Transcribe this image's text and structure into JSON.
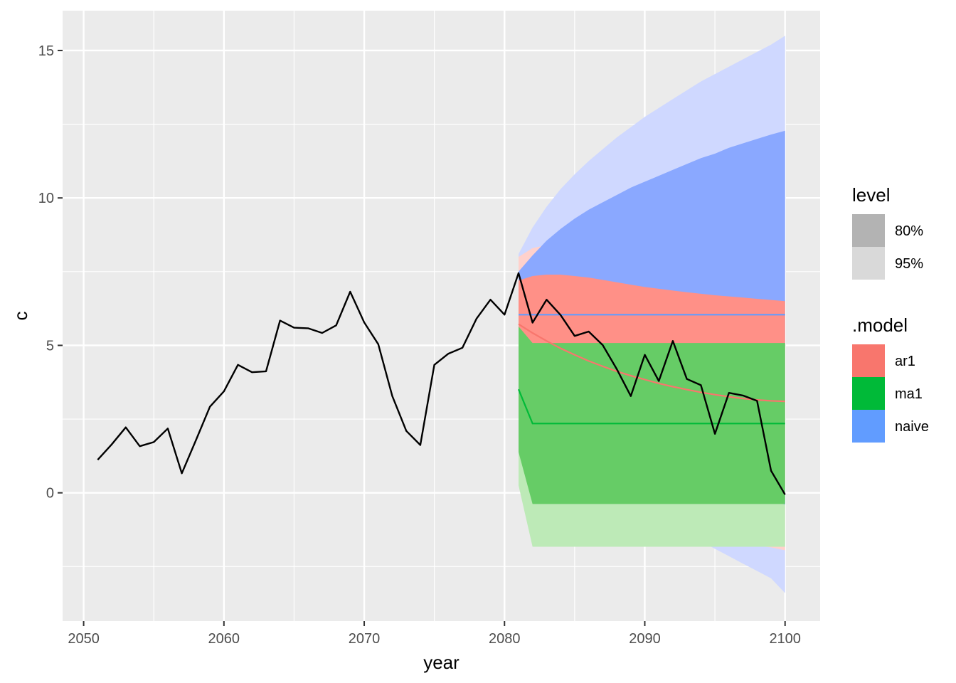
{
  "chart_data": {
    "type": "line",
    "xlabel": "year",
    "ylabel": "c",
    "xlim": [
      2048.5,
      2102.5
    ],
    "ylim": [
      -4.35,
      16.35
    ],
    "x_ticks": [
      2050,
      2060,
      2070,
      2080,
      2090,
      2100
    ],
    "y_ticks": [
      0,
      5,
      10,
      15
    ],
    "grid": true,
    "legend_placement": "right",
    "legends": [
      {
        "title": "level",
        "entries": [
          {
            "label": "80%",
            "color": "#b3b3b3"
          },
          {
            "label": "95%",
            "color": "#d9d9d9"
          }
        ]
      },
      {
        "title": ".model",
        "entries": [
          {
            "label": "ar1",
            "color": "#F8766D"
          },
          {
            "label": "ma1",
            "color": "#00BA38"
          },
          {
            "label": "naive",
            "color": "#619CFF"
          }
        ]
      }
    ],
    "observed": {
      "color": "#000000",
      "x": [
        2051,
        2052,
        2053,
        2054,
        2055,
        2056,
        2057,
        2058,
        2059,
        2060,
        2061,
        2062,
        2063,
        2064,
        2065,
        2066,
        2067,
        2068,
        2069,
        2070,
        2071,
        2072,
        2073,
        2074,
        2075,
        2076,
        2077,
        2078,
        2079,
        2080,
        2081,
        2082,
        2083,
        2084,
        2085,
        2086,
        2087,
        2088,
        2089,
        2090,
        2091,
        2092,
        2093,
        2094,
        2095,
        2096,
        2097,
        2098,
        2099,
        2100
      ],
      "y": [
        1.12,
        1.64,
        2.22,
        1.58,
        1.72,
        2.18,
        0.66,
        1.78,
        2.92,
        3.44,
        4.34,
        4.09,
        4.12,
        5.84,
        5.6,
        5.58,
        5.42,
        5.68,
        6.82,
        5.78,
        5.04,
        3.28,
        2.1,
        1.62,
        4.34,
        4.72,
        4.92,
        5.9,
        6.55,
        6.04,
        7.45,
        5.77,
        6.55,
        6.03,
        5.32,
        5.47,
        5.01,
        4.2,
        3.28,
        4.68,
        3.79,
        5.15,
        3.86,
        3.65,
        2.0,
        3.39,
        3.3,
        3.12,
        0.75,
        -0.06
      ]
    },
    "forecasts": [
      {
        "name": "naive",
        "color": "#619CFF",
        "color80": "#8aa8ff",
        "color95": "#cfd8ff",
        "x": [
          2081,
          2082,
          2083,
          2084,
          2085,
          2086,
          2087,
          2088,
          2089,
          2090,
          2091,
          2092,
          2093,
          2094,
          2095,
          2096,
          2097,
          2098,
          2099,
          2100
        ],
        "mean": [
          6.04,
          6.04,
          6.04,
          6.04,
          6.04,
          6.04,
          6.04,
          6.04,
          6.04,
          6.04,
          6.04,
          6.04,
          6.04,
          6.04,
          6.04,
          6.04,
          6.04,
          6.04,
          6.04,
          6.04
        ],
        "lo80": [
          4.6,
          4.0,
          3.5,
          3.1,
          2.8,
          2.5,
          2.2,
          2.0,
          1.7,
          1.5,
          1.3,
          1.1,
          0.9,
          0.7,
          0.5,
          0.3,
          0.1,
          -0.1,
          -0.25,
          -0.4
        ],
        "hi80": [
          7.5,
          8.05,
          8.55,
          8.95,
          9.3,
          9.6,
          9.85,
          10.1,
          10.35,
          10.55,
          10.75,
          10.95,
          11.15,
          11.35,
          11.5,
          11.7,
          11.85,
          12.0,
          12.15,
          12.28
        ],
        "lo95": [
          4.0,
          3.1,
          2.4,
          1.8,
          1.3,
          0.85,
          0.45,
          0.1,
          -0.25,
          -0.55,
          -0.85,
          -1.15,
          -1.4,
          -1.65,
          -1.9,
          -2.15,
          -2.4,
          -2.65,
          -2.9,
          -3.4
        ],
        "hi95": [
          8.1,
          9.0,
          9.7,
          10.3,
          10.8,
          11.25,
          11.65,
          12.05,
          12.4,
          12.75,
          13.05,
          13.35,
          13.65,
          13.95,
          14.2,
          14.45,
          14.7,
          14.95,
          15.2,
          15.5
        ]
      },
      {
        "name": "ar1",
        "color": "#F8766D",
        "color80": "#ff9087",
        "color95": "#ffd1cc",
        "x": [
          2081,
          2082,
          2083,
          2084,
          2085,
          2086,
          2087,
          2088,
          2089,
          2090,
          2091,
          2092,
          2093,
          2094,
          2095,
          2096,
          2097,
          2098,
          2099,
          2100
        ],
        "mean": [
          5.72,
          5.42,
          5.15,
          4.9,
          4.68,
          4.47,
          4.29,
          4.12,
          3.97,
          3.84,
          3.71,
          3.6,
          3.5,
          3.41,
          3.33,
          3.26,
          3.2,
          3.15,
          3.12,
          3.1
        ],
        "lo80": [
          4.2,
          3.5,
          3.0,
          2.6,
          2.3,
          2.0,
          1.8,
          1.6,
          1.4,
          1.2,
          1.1,
          1.0,
          0.9,
          0.8,
          0.7,
          0.6,
          0.5,
          0.4,
          0.3,
          0.2
        ],
        "hi80": [
          7.2,
          7.35,
          7.4,
          7.4,
          7.35,
          7.3,
          7.22,
          7.14,
          7.06,
          6.98,
          6.92,
          6.86,
          6.8,
          6.75,
          6.7,
          6.66,
          6.62,
          6.58,
          6.54,
          6.5
        ],
        "lo95": [
          3.4,
          2.3,
          1.5,
          0.9,
          0.4,
          0.0,
          -0.3,
          -0.6,
          -0.8,
          -1.0,
          -1.15,
          -1.3,
          -1.4,
          -1.5,
          -1.6,
          -1.7,
          -1.75,
          -1.8,
          -1.85,
          -1.95
        ],
        "hi95": [
          8.0,
          8.3,
          8.4,
          8.5,
          8.5,
          8.45,
          8.4,
          8.35,
          8.3,
          8.25,
          8.2,
          8.15,
          8.1,
          8.05,
          8.0,
          7.95,
          7.9,
          7.85,
          7.8,
          7.75
        ]
      },
      {
        "name": "ma1",
        "color": "#00BA38",
        "color80": "#66cc66",
        "color95": "#bdeab7",
        "x": [
          2081,
          2082,
          2083,
          2084,
          2085,
          2086,
          2087,
          2088,
          2089,
          2090,
          2091,
          2092,
          2093,
          2094,
          2095,
          2096,
          2097,
          2098,
          2099,
          2100
        ],
        "mean": [
          3.51,
          2.35,
          2.35,
          2.35,
          2.35,
          2.35,
          2.35,
          2.35,
          2.35,
          2.35,
          2.35,
          2.35,
          2.35,
          2.35,
          2.35,
          2.35,
          2.35,
          2.35,
          2.35,
          2.35
        ],
        "lo80": [
          1.38,
          -0.38,
          -0.38,
          -0.38,
          -0.38,
          -0.38,
          -0.38,
          -0.38,
          -0.38,
          -0.38,
          -0.38,
          -0.38,
          -0.38,
          -0.38,
          -0.38,
          -0.38,
          -0.38,
          -0.38,
          -0.38,
          -0.38
        ],
        "hi80": [
          5.64,
          5.08,
          5.08,
          5.08,
          5.08,
          5.08,
          5.08,
          5.08,
          5.08,
          5.08,
          5.08,
          5.08,
          5.08,
          5.08,
          5.08,
          5.08,
          5.08,
          5.08,
          5.08,
          5.08
        ],
        "lo95": [
          0.25,
          -1.83,
          -1.83,
          -1.83,
          -1.83,
          -1.83,
          -1.83,
          -1.83,
          -1.83,
          -1.83,
          -1.83,
          -1.83,
          -1.83,
          -1.83,
          -1.83,
          -1.83,
          -1.83,
          -1.83,
          -1.83,
          -1.83
        ],
        "hi95": [
          6.77,
          6.53,
          6.53,
          6.53,
          6.53,
          6.53,
          6.53,
          6.53,
          6.53,
          6.53,
          6.53,
          6.53,
          6.53,
          6.53,
          6.53,
          6.53,
          6.53,
          6.53,
          6.53,
          6.53
        ]
      }
    ]
  }
}
